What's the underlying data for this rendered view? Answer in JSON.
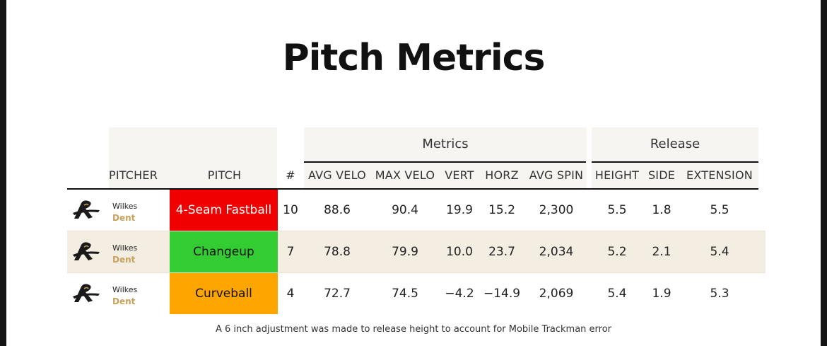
{
  "title": "Pitch Metrics",
  "groups": {
    "metrics": "Metrics",
    "release": "Release"
  },
  "columns": {
    "pitcher": "PITCHER",
    "pitch": "PITCH",
    "count": "#",
    "avg_velo": "AVG VELO",
    "max_velo": "MAX VELO",
    "vert": "VERT",
    "horz": "HORZ",
    "avg_spin": "AVG SPIN",
    "height": "HEIGHT",
    "side": "SIDE",
    "extension": "EXTENSION"
  },
  "colors": {
    "fastball": "#f00000",
    "changeup": "#33cc33",
    "curveball": "#ffa500",
    "accent": "#c8a25d"
  },
  "rows": [
    {
      "pitcher_last": "Wilkes",
      "pitcher_first": "Dent",
      "pitch": "4-Seam Fastball",
      "count": "10",
      "avg_velo": "88.6",
      "max_velo": "90.4",
      "vert": "19.9",
      "horz": "15.2",
      "avg_spin": "2,300",
      "height": "5.5",
      "side": "1.8",
      "extension": "5.5"
    },
    {
      "pitcher_last": "Wilkes",
      "pitcher_first": "Dent",
      "pitch": "Changeup",
      "count": "7",
      "avg_velo": "78.8",
      "max_velo": "79.9",
      "vert": "10.0",
      "horz": "23.7",
      "avg_spin": "2,034",
      "height": "5.2",
      "side": "2.1",
      "extension": "5.4"
    },
    {
      "pitcher_last": "Wilkes",
      "pitcher_first": "Dent",
      "pitch": "Curveball",
      "count": "4",
      "avg_velo": "72.7",
      "max_velo": "74.5",
      "vert": "−4.2",
      "horz": "−14.9",
      "avg_spin": "2,069",
      "height": "5.4",
      "side": "1.9",
      "extension": "5.3"
    }
  ],
  "footnote": "A 6 inch adjustment was made to release height to account for Mobile Trackman error"
}
